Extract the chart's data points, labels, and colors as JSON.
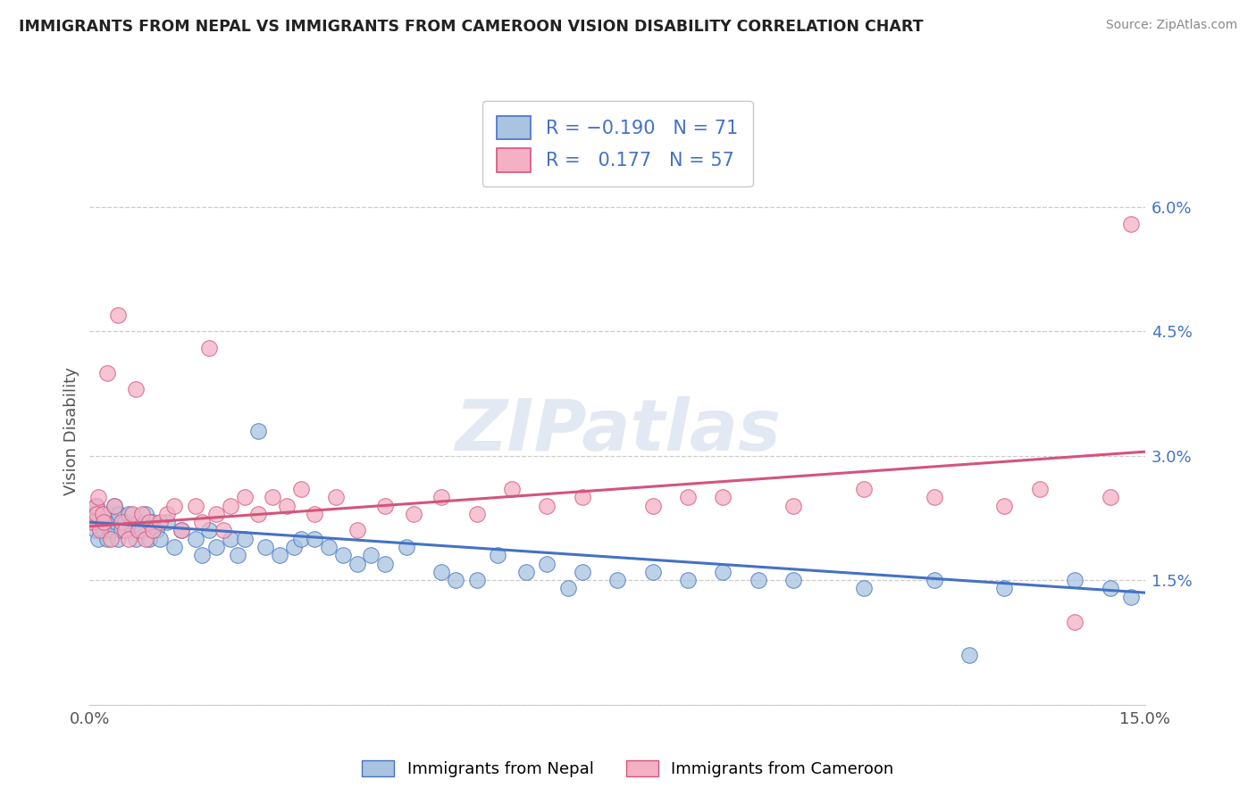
{
  "title": "IMMIGRANTS FROM NEPAL VS IMMIGRANTS FROM CAMEROON VISION DISABILITY CORRELATION CHART",
  "source": "Source: ZipAtlas.com",
  "ylabel": "Vision Disability",
  "xlim": [
    0.0,
    15.0
  ],
  "ylim": [
    0.0,
    6.6
  ],
  "yticks": [
    0.0,
    1.5,
    3.0,
    4.5,
    6.0
  ],
  "ytick_labels": [
    "",
    "1.5%",
    "3.0%",
    "4.5%",
    "6.0%"
  ],
  "color_nepal": "#a8c4e0",
  "color_cameroon": "#f4b0c4",
  "color_line_nepal": "#4472c4",
  "color_line_cameroon": "#d4547a",
  "background": "#ffffff",
  "watermark_color": "#ccd8e8",
  "nepal_x": [
    0.05,
    0.07,
    0.09,
    0.1,
    0.12,
    0.15,
    0.18,
    0.2,
    0.22,
    0.25,
    0.28,
    0.3,
    0.35,
    0.38,
    0.4,
    0.42,
    0.45,
    0.5,
    0.55,
    0.6,
    0.65,
    0.7,
    0.75,
    0.8,
    0.85,
    0.9,
    0.95,
    1.0,
    1.1,
    1.2,
    1.3,
    1.5,
    1.6,
    1.7,
    1.8,
    2.0,
    2.1,
    2.2,
    2.4,
    2.5,
    2.7,
    2.9,
    3.0,
    3.2,
    3.4,
    3.6,
    3.8,
    4.0,
    4.2,
    4.5,
    5.0,
    5.5,
    5.8,
    6.2,
    6.5,
    7.0,
    7.5,
    8.0,
    8.5,
    9.0,
    9.5,
    10.0,
    11.0,
    12.0,
    12.5,
    13.0,
    14.0,
    14.5,
    14.8,
    5.2,
    6.8
  ],
  "nepal_y": [
    2.2,
    2.3,
    2.1,
    2.4,
    2.0,
    2.2,
    2.3,
    2.1,
    2.2,
    2.0,
    2.3,
    2.1,
    2.4,
    2.2,
    2.0,
    2.3,
    2.1,
    2.2,
    2.3,
    2.1,
    2.0,
    2.2,
    2.1,
    2.3,
    2.0,
    2.2,
    2.1,
    2.0,
    2.2,
    1.9,
    2.1,
    2.0,
    1.8,
    2.1,
    1.9,
    2.0,
    1.8,
    2.0,
    3.3,
    1.9,
    1.8,
    1.9,
    2.0,
    2.0,
    1.9,
    1.8,
    1.7,
    1.8,
    1.7,
    1.9,
    1.6,
    1.5,
    1.8,
    1.6,
    1.7,
    1.6,
    1.5,
    1.6,
    1.5,
    1.6,
    1.5,
    1.5,
    1.4,
    1.5,
    0.6,
    1.4,
    1.5,
    1.4,
    1.3,
    1.5,
    1.4
  ],
  "cameroon_x": [
    0.05,
    0.08,
    0.1,
    0.12,
    0.15,
    0.18,
    0.2,
    0.25,
    0.3,
    0.35,
    0.4,
    0.45,
    0.5,
    0.55,
    0.6,
    0.65,
    0.7,
    0.75,
    0.8,
    0.85,
    0.9,
    1.0,
    1.1,
    1.2,
    1.3,
    1.5,
    1.6,
    1.7,
    1.8,
    1.9,
    2.0,
    2.2,
    2.4,
    2.6,
    2.8,
    3.0,
    3.2,
    3.5,
    3.8,
    4.2,
    4.6,
    5.0,
    5.5,
    6.0,
    7.0,
    8.0,
    9.0,
    10.0,
    11.0,
    12.0,
    13.0,
    14.0,
    14.5,
    6.5,
    8.5,
    13.5,
    14.8
  ],
  "cameroon_y": [
    2.2,
    2.4,
    2.3,
    2.5,
    2.1,
    2.3,
    2.2,
    4.0,
    2.0,
    2.4,
    4.7,
    2.2,
    2.1,
    2.0,
    2.3,
    3.8,
    2.1,
    2.3,
    2.0,
    2.2,
    2.1,
    2.2,
    2.3,
    2.4,
    2.1,
    2.4,
    2.2,
    4.3,
    2.3,
    2.1,
    2.4,
    2.5,
    2.3,
    2.5,
    2.4,
    2.6,
    2.3,
    2.5,
    2.1,
    2.4,
    2.3,
    2.5,
    2.3,
    2.6,
    2.5,
    2.4,
    2.5,
    2.4,
    2.6,
    2.5,
    2.4,
    1.0,
    2.5,
    2.4,
    2.5,
    2.6,
    5.8
  ]
}
